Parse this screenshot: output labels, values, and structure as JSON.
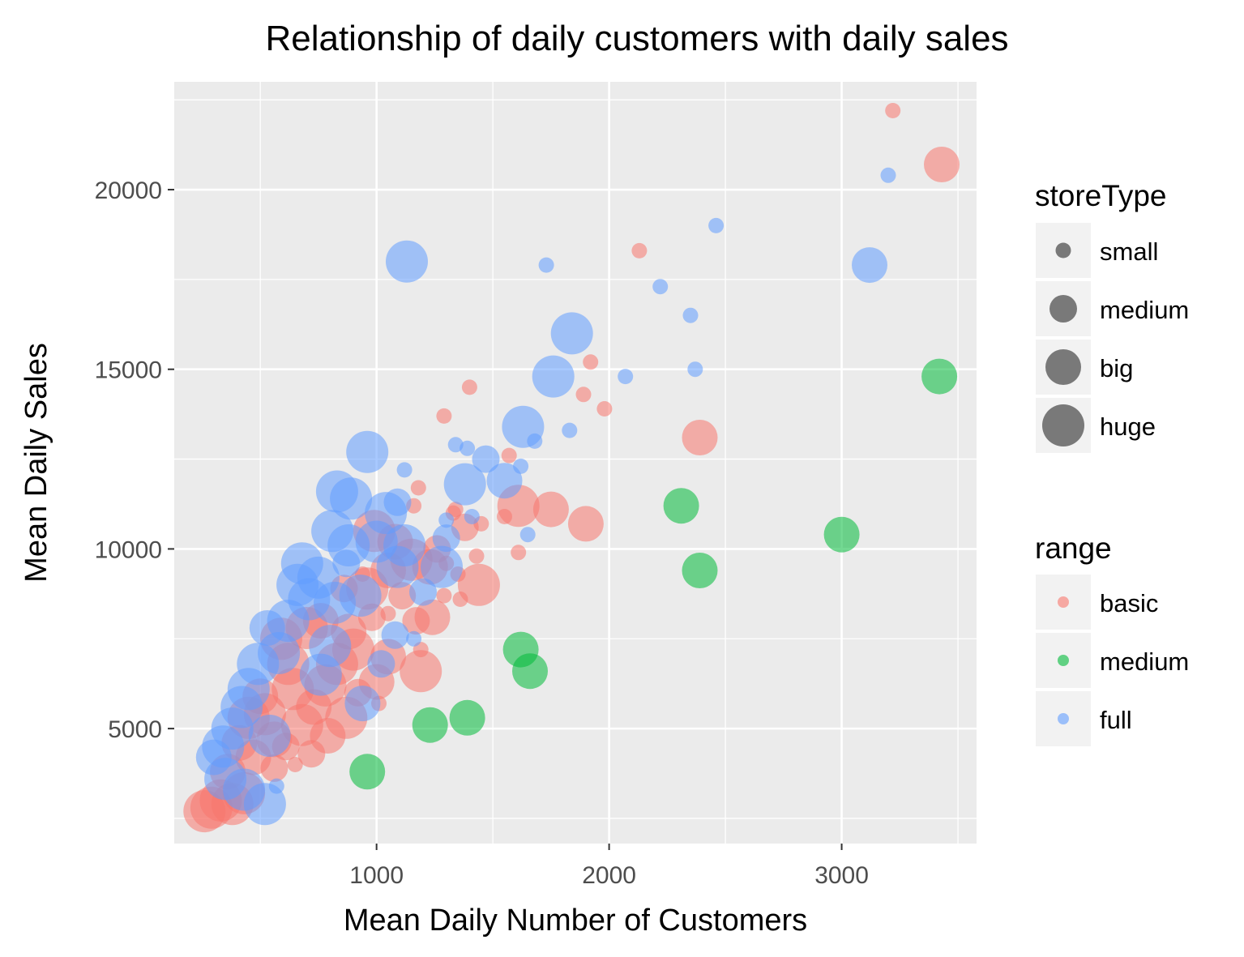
{
  "chart_data": {
    "type": "scatter",
    "title": "Relationship of daily customers with daily sales",
    "xlabel": "Mean Daily Number of Customers",
    "ylabel": "Mean Daily Sales",
    "xlim": [
      130,
      3580
    ],
    "ylim": [
      1800,
      23000
    ],
    "x_ticks": [
      1000,
      2000,
      3000
    ],
    "x_tick_labels": [
      "1000",
      "2000",
      "3000"
    ],
    "y_ticks": [
      5000,
      10000,
      15000,
      20000
    ],
    "y_tick_labels": [
      "5000",
      "10000",
      "15000",
      "20000"
    ],
    "grid": true,
    "legends": [
      {
        "title": "storeType",
        "kind": "size",
        "entries": [
          {
            "label": "small",
            "key": "small"
          },
          {
            "label": "medium",
            "key": "medium"
          },
          {
            "label": "big",
            "key": "big"
          },
          {
            "label": "huge",
            "key": "huge"
          }
        ]
      },
      {
        "title": "range",
        "kind": "color",
        "entries": [
          {
            "label": "basic",
            "key": "basic"
          },
          {
            "label": "medium",
            "key": "medium"
          },
          {
            "label": "full",
            "key": "full"
          }
        ]
      }
    ],
    "colors": {
      "basic": "#F8766D",
      "medium": "#00BA38",
      "full": "#619CFF"
    },
    "series": [
      {
        "range": "basic",
        "points": [
          {
            "x": 3220,
            "y": 22200,
            "s": "small"
          },
          {
            "x": 3430,
            "y": 20700,
            "s": "big"
          },
          {
            "x": 2130,
            "y": 18300,
            "s": "small"
          },
          {
            "x": 1920,
            "y": 15200,
            "s": "small"
          },
          {
            "x": 1400,
            "y": 14500,
            "s": "small"
          },
          {
            "x": 1890,
            "y": 14300,
            "s": "small"
          },
          {
            "x": 1980,
            "y": 13900,
            "s": "small"
          },
          {
            "x": 1290,
            "y": 13700,
            "s": "small"
          },
          {
            "x": 2390,
            "y": 13100,
            "s": "big"
          },
          {
            "x": 1570,
            "y": 12600,
            "s": "small"
          },
          {
            "x": 1610,
            "y": 11200,
            "s": "huge"
          },
          {
            "x": 1750,
            "y": 11100,
            "s": "big"
          },
          {
            "x": 1900,
            "y": 10700,
            "s": "big"
          },
          {
            "x": 1450,
            "y": 10700,
            "s": "small"
          },
          {
            "x": 1550,
            "y": 10900,
            "s": "small"
          },
          {
            "x": 1610,
            "y": 9900,
            "s": "small"
          },
          {
            "x": 1430,
            "y": 9800,
            "s": "small"
          },
          {
            "x": 1180,
            "y": 11700,
            "s": "small"
          },
          {
            "x": 1330,
            "y": 11000,
            "s": "small"
          },
          {
            "x": 1440,
            "y": 9000,
            "s": "huge"
          },
          {
            "x": 1360,
            "y": 8600,
            "s": "small"
          },
          {
            "x": 1290,
            "y": 8700,
            "s": "small"
          },
          {
            "x": 1240,
            "y": 8100,
            "s": "big"
          },
          {
            "x": 1190,
            "y": 6600,
            "s": "huge"
          },
          {
            "x": 1190,
            "y": 7200,
            "s": "small"
          },
          {
            "x": 1110,
            "y": 8700,
            "s": "medium"
          },
          {
            "x": 1050,
            "y": 9400,
            "s": "big"
          },
          {
            "x": 960,
            "y": 8900,
            "s": "huge"
          },
          {
            "x": 880,
            "y": 7700,
            "s": "big"
          },
          {
            "x": 830,
            "y": 6800,
            "s": "huge"
          },
          {
            "x": 780,
            "y": 6200,
            "s": "huge"
          },
          {
            "x": 730,
            "y": 5600,
            "s": "big"
          },
          {
            "x": 680,
            "y": 5100,
            "s": "huge"
          },
          {
            "x": 620,
            "y": 6800,
            "s": "huge"
          },
          {
            "x": 590,
            "y": 7500,
            "s": "huge"
          },
          {
            "x": 560,
            "y": 4700,
            "s": "big"
          },
          {
            "x": 520,
            "y": 5400,
            "s": "huge"
          },
          {
            "x": 470,
            "y": 4200,
            "s": "big"
          },
          {
            "x": 430,
            "y": 3200,
            "s": "huge"
          },
          {
            "x": 380,
            "y": 2900,
            "s": "huge"
          },
          {
            "x": 330,
            "y": 3000,
            "s": "huge"
          },
          {
            "x": 290,
            "y": 2800,
            "s": "huge"
          },
          {
            "x": 260,
            "y": 2700,
            "s": "huge"
          },
          {
            "x": 360,
            "y": 3800,
            "s": "big"
          },
          {
            "x": 410,
            "y": 4600,
            "s": "big"
          },
          {
            "x": 650,
            "y": 4000,
            "s": "small"
          },
          {
            "x": 720,
            "y": 4300,
            "s": "medium"
          },
          {
            "x": 790,
            "y": 4800,
            "s": "big"
          },
          {
            "x": 870,
            "y": 5300,
            "s": "huge"
          },
          {
            "x": 920,
            "y": 6000,
            "s": "medium"
          },
          {
            "x": 1000,
            "y": 6300,
            "s": "big"
          },
          {
            "x": 1050,
            "y": 7000,
            "s": "big"
          },
          {
            "x": 990,
            "y": 10500,
            "s": "huge"
          },
          {
            "x": 1080,
            "y": 10200,
            "s": "big"
          },
          {
            "x": 1150,
            "y": 9700,
            "s": "huge"
          },
          {
            "x": 1230,
            "y": 9500,
            "s": "big"
          },
          {
            "x": 1260,
            "y": 10000,
            "s": "medium"
          },
          {
            "x": 1340,
            "y": 11100,
            "s": "small"
          },
          {
            "x": 1380,
            "y": 10600,
            "s": "medium"
          },
          {
            "x": 1160,
            "y": 11200,
            "s": "small"
          },
          {
            "x": 940,
            "y": 9300,
            "s": "small"
          },
          {
            "x": 900,
            "y": 7200,
            "s": "huge"
          },
          {
            "x": 700,
            "y": 7800,
            "s": "huge"
          },
          {
            "x": 640,
            "y": 6100,
            "s": "huge"
          },
          {
            "x": 500,
            "y": 5900,
            "s": "big"
          },
          {
            "x": 450,
            "y": 5300,
            "s": "huge"
          },
          {
            "x": 1170,
            "y": 8000,
            "s": "medium"
          },
          {
            "x": 1050,
            "y": 8200,
            "s": "small"
          },
          {
            "x": 980,
            "y": 8100,
            "s": "medium"
          },
          {
            "x": 860,
            "y": 8900,
            "s": "medium"
          },
          {
            "x": 760,
            "y": 8000,
            "s": "big"
          },
          {
            "x": 1010,
            "y": 5700,
            "s": "small"
          },
          {
            "x": 560,
            "y": 3900,
            "s": "medium"
          },
          {
            "x": 610,
            "y": 4500,
            "s": "medium"
          },
          {
            "x": 1300,
            "y": 9600,
            "s": "small"
          },
          {
            "x": 1350,
            "y": 9300,
            "s": "small"
          }
        ]
      },
      {
        "range": "medium",
        "points": [
          {
            "x": 3420,
            "y": 14800,
            "s": "big"
          },
          {
            "x": 2310,
            "y": 11200,
            "s": "big"
          },
          {
            "x": 3000,
            "y": 10400,
            "s": "big"
          },
          {
            "x": 2390,
            "y": 9400,
            "s": "big"
          },
          {
            "x": 1620,
            "y": 7200,
            "s": "big"
          },
          {
            "x": 1660,
            "y": 6600,
            "s": "big"
          },
          {
            "x": 1390,
            "y": 5300,
            "s": "big"
          },
          {
            "x": 1230,
            "y": 5100,
            "s": "big"
          },
          {
            "x": 960,
            "y": 3800,
            "s": "big"
          }
        ]
      },
      {
        "range": "full",
        "points": [
          {
            "x": 3200,
            "y": 20400,
            "s": "small"
          },
          {
            "x": 2460,
            "y": 19000,
            "s": "small"
          },
          {
            "x": 1130,
            "y": 18000,
            "s": "huge"
          },
          {
            "x": 3120,
            "y": 17900,
            "s": "big"
          },
          {
            "x": 1730,
            "y": 17900,
            "s": "small"
          },
          {
            "x": 2220,
            "y": 17300,
            "s": "small"
          },
          {
            "x": 2350,
            "y": 16500,
            "s": "small"
          },
          {
            "x": 1840,
            "y": 16000,
            "s": "huge"
          },
          {
            "x": 2370,
            "y": 15000,
            "s": "small"
          },
          {
            "x": 1760,
            "y": 14800,
            "s": "huge"
          },
          {
            "x": 2070,
            "y": 14800,
            "s": "small"
          },
          {
            "x": 1630,
            "y": 13400,
            "s": "huge"
          },
          {
            "x": 1830,
            "y": 13300,
            "s": "small"
          },
          {
            "x": 1680,
            "y": 13000,
            "s": "small"
          },
          {
            "x": 1340,
            "y": 12900,
            "s": "small"
          },
          {
            "x": 1390,
            "y": 12800,
            "s": "small"
          },
          {
            "x": 960,
            "y": 12700,
            "s": "huge"
          },
          {
            "x": 1470,
            "y": 12500,
            "s": "medium"
          },
          {
            "x": 1620,
            "y": 12300,
            "s": "small"
          },
          {
            "x": 1120,
            "y": 12200,
            "s": "small"
          },
          {
            "x": 1380,
            "y": 11800,
            "s": "huge"
          },
          {
            "x": 1550,
            "y": 11900,
            "s": "big"
          },
          {
            "x": 830,
            "y": 11600,
            "s": "huge"
          },
          {
            "x": 890,
            "y": 11400,
            "s": "huge"
          },
          {
            "x": 1040,
            "y": 11000,
            "s": "huge"
          },
          {
            "x": 1090,
            "y": 11300,
            "s": "medium"
          },
          {
            "x": 1300,
            "y": 10800,
            "s": "small"
          },
          {
            "x": 1410,
            "y": 10900,
            "s": "small"
          },
          {
            "x": 1650,
            "y": 10400,
            "s": "small"
          },
          {
            "x": 810,
            "y": 10500,
            "s": "huge"
          },
          {
            "x": 880,
            "y": 10100,
            "s": "huge"
          },
          {
            "x": 1000,
            "y": 10200,
            "s": "huge"
          },
          {
            "x": 1120,
            "y": 10100,
            "s": "huge"
          },
          {
            "x": 680,
            "y": 9600,
            "s": "huge"
          },
          {
            "x": 750,
            "y": 9200,
            "s": "huge"
          },
          {
            "x": 660,
            "y": 9000,
            "s": "huge"
          },
          {
            "x": 710,
            "y": 8600,
            "s": "huge"
          },
          {
            "x": 820,
            "y": 8500,
            "s": "huge"
          },
          {
            "x": 930,
            "y": 8700,
            "s": "huge"
          },
          {
            "x": 1090,
            "y": 9500,
            "s": "huge"
          },
          {
            "x": 1280,
            "y": 9500,
            "s": "huge"
          },
          {
            "x": 1200,
            "y": 8800,
            "s": "medium"
          },
          {
            "x": 1160,
            "y": 7500,
            "s": "small"
          },
          {
            "x": 620,
            "y": 8000,
            "s": "huge"
          },
          {
            "x": 580,
            "y": 7100,
            "s": "huge"
          },
          {
            "x": 530,
            "y": 7800,
            "s": "big"
          },
          {
            "x": 490,
            "y": 6800,
            "s": "huge"
          },
          {
            "x": 450,
            "y": 6100,
            "s": "huge"
          },
          {
            "x": 420,
            "y": 5600,
            "s": "huge"
          },
          {
            "x": 380,
            "y": 5000,
            "s": "huge"
          },
          {
            "x": 340,
            "y": 4500,
            "s": "huge"
          },
          {
            "x": 300,
            "y": 4200,
            "s": "big"
          },
          {
            "x": 350,
            "y": 3600,
            "s": "huge"
          },
          {
            "x": 430,
            "y": 3300,
            "s": "huge"
          },
          {
            "x": 520,
            "y": 2900,
            "s": "huge"
          },
          {
            "x": 570,
            "y": 3400,
            "s": "small"
          },
          {
            "x": 760,
            "y": 6500,
            "s": "huge"
          },
          {
            "x": 940,
            "y": 5700,
            "s": "big"
          },
          {
            "x": 1020,
            "y": 6800,
            "s": "medium"
          },
          {
            "x": 1080,
            "y": 7600,
            "s": "medium"
          },
          {
            "x": 540,
            "y": 4800,
            "s": "huge"
          },
          {
            "x": 800,
            "y": 7300,
            "s": "huge"
          },
          {
            "x": 870,
            "y": 9600,
            "s": "medium"
          },
          {
            "x": 1300,
            "y": 10300,
            "s": "medium"
          }
        ]
      }
    ]
  }
}
